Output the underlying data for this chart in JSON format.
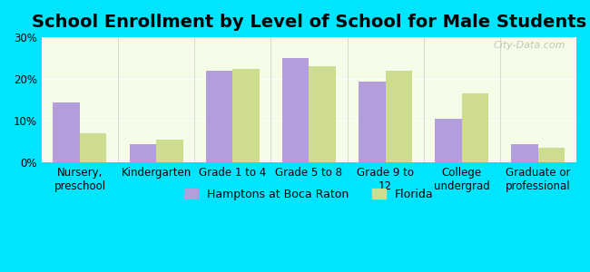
{
  "title": "School Enrollment by Level of School for Male Students",
  "categories": [
    "Nursery,\npreschool",
    "Kindergarten",
    "Grade 1 to 4",
    "Grade 5 to 8",
    "Grade 9 to\n12",
    "College\nundergrad",
    "Graduate or\nprofessional"
  ],
  "hamptons_values": [
    14.5,
    4.5,
    22.0,
    25.0,
    19.5,
    10.5,
    4.5
  ],
  "florida_values": [
    7.0,
    5.5,
    22.5,
    23.0,
    22.0,
    16.5,
    3.5
  ],
  "hamptons_color": "#b39ddb",
  "florida_color": "#cddc8e",
  "background_outer": "#00e5ff",
  "background_inner": "#f5fde8",
  "ylim": [
    0,
    30
  ],
  "yticks": [
    0,
    10,
    20,
    30
  ],
  "yticklabels": [
    "0%",
    "10%",
    "20%",
    "30%"
  ],
  "legend_hamptons": "Hamptons at Boca Raton",
  "legend_florida": "Florida",
  "bar_width": 0.35,
  "title_fontsize": 14,
  "tick_fontsize": 8.5,
  "legend_fontsize": 9
}
